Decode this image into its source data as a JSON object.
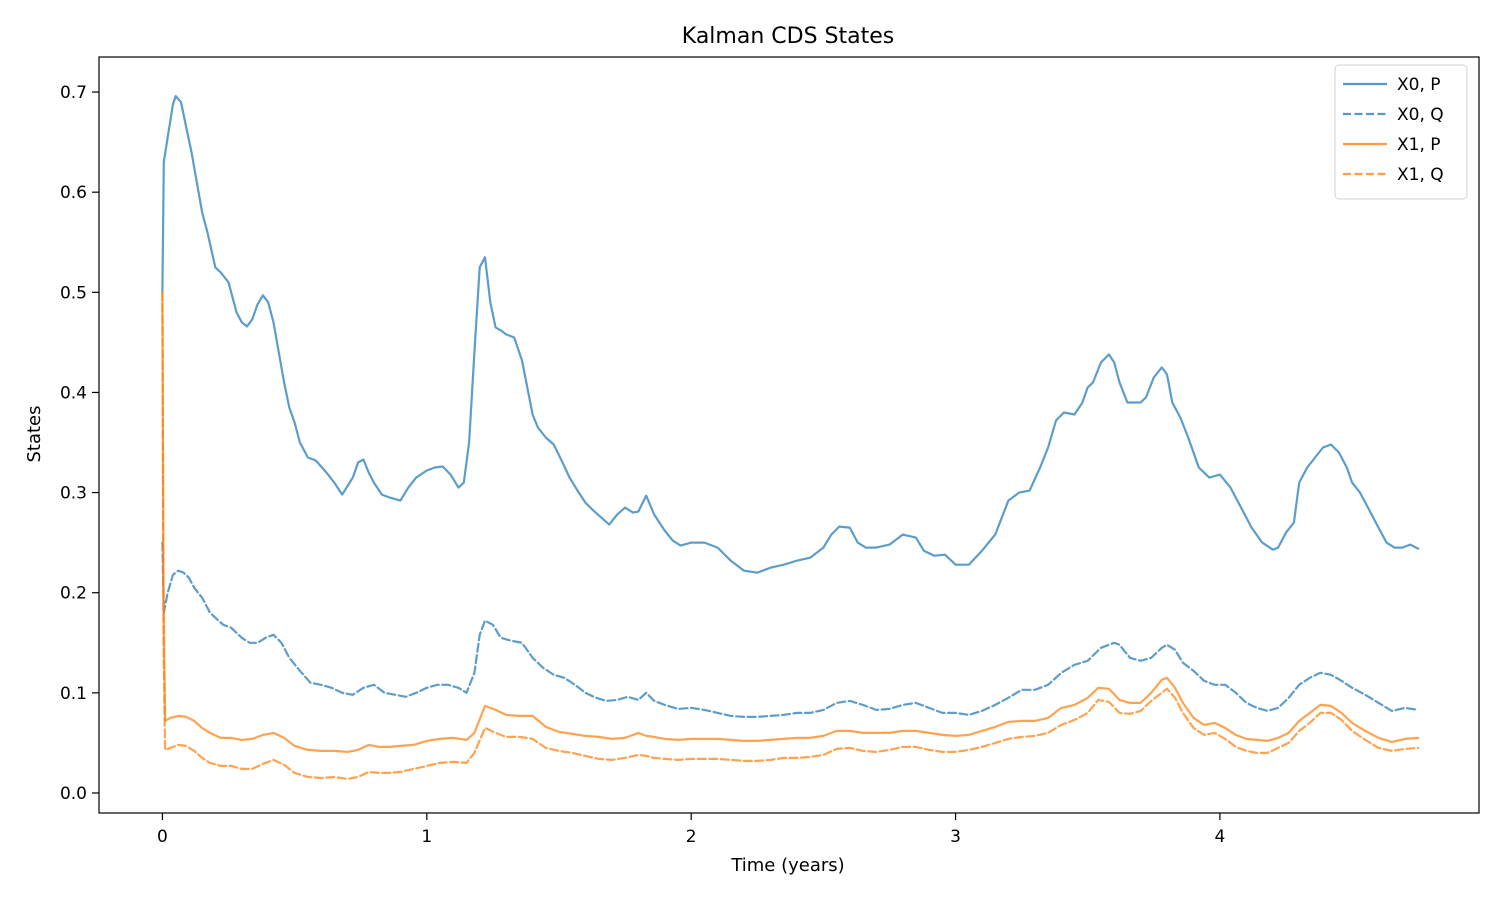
{
  "chart_data": {
    "type": "line",
    "title": "Kalman CDS States",
    "xlabel": "Time (years)",
    "ylabel": "States",
    "xlim": [
      -0.24,
      4.98
    ],
    "ylim": [
      -0.02,
      0.735
    ],
    "xticks": [
      0,
      1,
      2,
      3,
      4
    ],
    "xtick_labels": [
      "0",
      "1",
      "2",
      "3",
      "4"
    ],
    "yticks": [
      0.0,
      0.1,
      0.2,
      0.3,
      0.4,
      0.5,
      0.6,
      0.7
    ],
    "ytick_labels": [
      "0.0",
      "0.1",
      "0.2",
      "0.3",
      "0.4",
      "0.5",
      "0.6",
      "0.7"
    ],
    "grid": false,
    "legend_position": "top-right",
    "series": [
      {
        "name": "X0, P",
        "color": "#1f77b4",
        "dash": "solid",
        "x": [
          0,
          0.005,
          0.02,
          0.04,
          0.05,
          0.07,
          0.09,
          0.11,
          0.13,
          0.15,
          0.17,
          0.2,
          0.22,
          0.25,
          0.28,
          0.3,
          0.32,
          0.34,
          0.36,
          0.38,
          0.4,
          0.42,
          0.44,
          0.46,
          0.48,
          0.5,
          0.52,
          0.55,
          0.58,
          0.62,
          0.65,
          0.68,
          0.72,
          0.74,
          0.76,
          0.78,
          0.8,
          0.83,
          0.86,
          0.9,
          0.93,
          0.96,
          1.0,
          1.03,
          1.06,
          1.09,
          1.12,
          1.14,
          1.16,
          1.18,
          1.2,
          1.22,
          1.24,
          1.26,
          1.28,
          1.3,
          1.33,
          1.36,
          1.38,
          1.4,
          1.42,
          1.45,
          1.48,
          1.51,
          1.54,
          1.57,
          1.6,
          1.63,
          1.66,
          1.69,
          1.72,
          1.75,
          1.78,
          1.8,
          1.83,
          1.86,
          1.9,
          1.93,
          1.96,
          2.0,
          2.05,
          2.1,
          2.15,
          2.2,
          2.25,
          2.3,
          2.35,
          2.4,
          2.45,
          2.5,
          2.53,
          2.56,
          2.6,
          2.63,
          2.66,
          2.7,
          2.75,
          2.8,
          2.85,
          2.88,
          2.92,
          2.96,
          3.0,
          3.05,
          3.1,
          3.15,
          3.2,
          3.24,
          3.28,
          3.32,
          3.35,
          3.38,
          3.41,
          3.45,
          3.48,
          3.5,
          3.52,
          3.55,
          3.58,
          3.6,
          3.62,
          3.65,
          3.68,
          3.7,
          3.72,
          3.75,
          3.78,
          3.8,
          3.82,
          3.85,
          3.88,
          3.92,
          3.96,
          4.0,
          4.04,
          4.08,
          4.12,
          4.16,
          4.2,
          4.22,
          4.25,
          4.28,
          4.3,
          4.33,
          4.36,
          4.39,
          4.42,
          4.45,
          4.48,
          4.5,
          4.53,
          4.56,
          4.6,
          4.63,
          4.66,
          4.69,
          4.72,
          4.75
        ],
        "values": [
          0.5,
          0.63,
          0.655,
          0.688,
          0.696,
          0.69,
          0.665,
          0.64,
          0.61,
          0.58,
          0.56,
          0.525,
          0.52,
          0.51,
          0.48,
          0.47,
          0.466,
          0.473,
          0.488,
          0.497,
          0.49,
          0.47,
          0.44,
          0.41,
          0.385,
          0.37,
          0.35,
          0.335,
          0.332,
          0.32,
          0.31,
          0.298,
          0.315,
          0.33,
          0.333,
          0.32,
          0.31,
          0.298,
          0.295,
          0.292,
          0.305,
          0.315,
          0.322,
          0.325,
          0.326,
          0.318,
          0.305,
          0.31,
          0.35,
          0.44,
          0.525,
          0.535,
          0.49,
          0.465,
          0.462,
          0.458,
          0.455,
          0.432,
          0.405,
          0.378,
          0.365,
          0.355,
          0.348,
          0.332,
          0.315,
          0.302,
          0.29,
          0.282,
          0.275,
          0.268,
          0.278,
          0.285,
          0.28,
          0.281,
          0.297,
          0.278,
          0.262,
          0.252,
          0.247,
          0.25,
          0.25,
          0.245,
          0.232,
          0.222,
          0.22,
          0.225,
          0.228,
          0.232,
          0.235,
          0.245,
          0.258,
          0.266,
          0.265,
          0.25,
          0.245,
          0.245,
          0.248,
          0.258,
          0.255,
          0.242,
          0.237,
          0.238,
          0.228,
          0.228,
          0.242,
          0.258,
          0.292,
          0.3,
          0.302,
          0.325,
          0.345,
          0.372,
          0.38,
          0.378,
          0.39,
          0.405,
          0.41,
          0.43,
          0.438,
          0.43,
          0.41,
          0.39,
          0.39,
          0.39,
          0.395,
          0.415,
          0.425,
          0.418,
          0.39,
          0.375,
          0.355,
          0.325,
          0.315,
          0.318,
          0.305,
          0.285,
          0.265,
          0.25,
          0.243,
          0.245,
          0.26,
          0.27,
          0.31,
          0.325,
          0.335,
          0.345,
          0.348,
          0.34,
          0.325,
          0.31,
          0.3,
          0.285,
          0.265,
          0.25,
          0.245,
          0.245,
          0.248,
          0.244
        ]
      },
      {
        "name": "X0, Q",
        "color": "#1f77b4",
        "dash": "dashed",
        "x": [
          0,
          0.005,
          0.02,
          0.04,
          0.06,
          0.08,
          0.1,
          0.12,
          0.15,
          0.18,
          0.2,
          0.23,
          0.26,
          0.3,
          0.33,
          0.36,
          0.39,
          0.42,
          0.45,
          0.48,
          0.52,
          0.56,
          0.6,
          0.64,
          0.68,
          0.72,
          0.76,
          0.8,
          0.84,
          0.88,
          0.92,
          0.96,
          1.0,
          1.04,
          1.08,
          1.12,
          1.15,
          1.18,
          1.2,
          1.22,
          1.25,
          1.28,
          1.32,
          1.36,
          1.4,
          1.44,
          1.48,
          1.52,
          1.56,
          1.6,
          1.64,
          1.68,
          1.72,
          1.76,
          1.8,
          1.83,
          1.86,
          1.9,
          1.95,
          2.0,
          2.05,
          2.1,
          2.15,
          2.2,
          2.25,
          2.3,
          2.35,
          2.4,
          2.45,
          2.5,
          2.55,
          2.6,
          2.65,
          2.7,
          2.75,
          2.8,
          2.85,
          2.9,
          2.95,
          3.0,
          3.05,
          3.1,
          3.15,
          3.2,
          3.25,
          3.3,
          3.35,
          3.4,
          3.45,
          3.5,
          3.55,
          3.6,
          3.62,
          3.66,
          3.7,
          3.74,
          3.78,
          3.8,
          3.83,
          3.86,
          3.9,
          3.94,
          3.98,
          4.02,
          4.06,
          4.1,
          4.14,
          4.18,
          4.22,
          4.26,
          4.3,
          4.34,
          4.38,
          4.42,
          4.46,
          4.5,
          4.55,
          4.6,
          4.65,
          4.7,
          4.75
        ],
        "values": [
          0.25,
          0.18,
          0.2,
          0.218,
          0.222,
          0.22,
          0.215,
          0.205,
          0.195,
          0.18,
          0.175,
          0.168,
          0.165,
          0.155,
          0.15,
          0.15,
          0.155,
          0.158,
          0.15,
          0.135,
          0.122,
          0.11,
          0.108,
          0.105,
          0.1,
          0.098,
          0.105,
          0.108,
          0.1,
          0.098,
          0.096,
          0.1,
          0.105,
          0.108,
          0.108,
          0.105,
          0.1,
          0.12,
          0.158,
          0.172,
          0.168,
          0.155,
          0.152,
          0.15,
          0.135,
          0.125,
          0.118,
          0.115,
          0.108,
          0.1,
          0.095,
          0.092,
          0.093,
          0.096,
          0.093,
          0.1,
          0.092,
          0.088,
          0.084,
          0.085,
          0.083,
          0.08,
          0.077,
          0.076,
          0.076,
          0.077,
          0.078,
          0.08,
          0.08,
          0.083,
          0.09,
          0.092,
          0.088,
          0.083,
          0.084,
          0.088,
          0.09,
          0.085,
          0.08,
          0.08,
          0.078,
          0.082,
          0.088,
          0.095,
          0.103,
          0.103,
          0.108,
          0.12,
          0.128,
          0.132,
          0.145,
          0.15,
          0.148,
          0.135,
          0.132,
          0.135,
          0.145,
          0.148,
          0.143,
          0.13,
          0.122,
          0.112,
          0.108,
          0.108,
          0.1,
          0.09,
          0.085,
          0.082,
          0.085,
          0.095,
          0.108,
          0.115,
          0.12,
          0.118,
          0.112,
          0.105,
          0.098,
          0.09,
          0.082,
          0.085,
          0.083
        ]
      },
      {
        "name": "X1, P",
        "color": "#ff7f0e",
        "dash": "solid",
        "x": [
          0,
          0.004,
          0.01,
          0.03,
          0.06,
          0.09,
          0.12,
          0.15,
          0.18,
          0.22,
          0.26,
          0.3,
          0.34,
          0.38,
          0.42,
          0.46,
          0.5,
          0.55,
          0.6,
          0.65,
          0.7,
          0.74,
          0.78,
          0.82,
          0.86,
          0.9,
          0.95,
          1.0,
          1.05,
          1.1,
          1.15,
          1.18,
          1.22,
          1.26,
          1.3,
          1.35,
          1.4,
          1.45,
          1.5,
          1.55,
          1.6,
          1.65,
          1.7,
          1.75,
          1.8,
          1.83,
          1.86,
          1.9,
          1.95,
          2.0,
          2.05,
          2.1,
          2.15,
          2.2,
          2.25,
          2.3,
          2.35,
          2.4,
          2.45,
          2.5,
          2.55,
          2.6,
          2.65,
          2.7,
          2.75,
          2.8,
          2.85,
          2.9,
          2.95,
          3.0,
          3.05,
          3.1,
          3.15,
          3.2,
          3.25,
          3.3,
          3.35,
          3.4,
          3.45,
          3.5,
          3.54,
          3.58,
          3.62,
          3.66,
          3.7,
          3.74,
          3.78,
          3.8,
          3.83,
          3.86,
          3.9,
          3.94,
          3.98,
          4.02,
          4.06,
          4.1,
          4.14,
          4.18,
          4.22,
          4.26,
          4.3,
          4.34,
          4.38,
          4.42,
          4.46,
          4.5,
          4.55,
          4.6,
          4.65,
          4.7,
          4.75
        ],
        "values": [
          0.5,
          0.2,
          0.072,
          0.075,
          0.077,
          0.076,
          0.072,
          0.065,
          0.06,
          0.055,
          0.055,
          0.053,
          0.054,
          0.058,
          0.06,
          0.055,
          0.047,
          0.043,
          0.042,
          0.042,
          0.041,
          0.043,
          0.048,
          0.046,
          0.046,
          0.047,
          0.048,
          0.052,
          0.054,
          0.055,
          0.053,
          0.06,
          0.087,
          0.083,
          0.078,
          0.077,
          0.077,
          0.066,
          0.061,
          0.059,
          0.057,
          0.056,
          0.054,
          0.055,
          0.06,
          0.057,
          0.056,
          0.054,
          0.053,
          0.054,
          0.054,
          0.054,
          0.053,
          0.052,
          0.052,
          0.053,
          0.054,
          0.055,
          0.055,
          0.057,
          0.062,
          0.062,
          0.06,
          0.06,
          0.06,
          0.062,
          0.062,
          0.06,
          0.058,
          0.057,
          0.058,
          0.062,
          0.066,
          0.071,
          0.072,
          0.072,
          0.075,
          0.085,
          0.088,
          0.095,
          0.105,
          0.104,
          0.093,
          0.09,
          0.09,
          0.1,
          0.113,
          0.115,
          0.105,
          0.09,
          0.075,
          0.068,
          0.07,
          0.065,
          0.058,
          0.054,
          0.053,
          0.052,
          0.055,
          0.06,
          0.072,
          0.08,
          0.088,
          0.087,
          0.08,
          0.07,
          0.062,
          0.055,
          0.051,
          0.054,
          0.055
        ]
      },
      {
        "name": "X1, Q",
        "color": "#ff7f0e",
        "dash": "dashed",
        "x": [
          0,
          0.004,
          0.01,
          0.03,
          0.06,
          0.09,
          0.12,
          0.15,
          0.18,
          0.22,
          0.26,
          0.3,
          0.34,
          0.38,
          0.42,
          0.46,
          0.5,
          0.55,
          0.6,
          0.65,
          0.7,
          0.74,
          0.78,
          0.82,
          0.86,
          0.9,
          0.95,
          1.0,
          1.05,
          1.1,
          1.15,
          1.18,
          1.22,
          1.26,
          1.3,
          1.35,
          1.4,
          1.45,
          1.5,
          1.55,
          1.6,
          1.65,
          1.7,
          1.75,
          1.8,
          1.83,
          1.86,
          1.9,
          1.95,
          2.0,
          2.05,
          2.1,
          2.15,
          2.2,
          2.25,
          2.3,
          2.35,
          2.4,
          2.45,
          2.5,
          2.55,
          2.6,
          2.65,
          2.7,
          2.75,
          2.8,
          2.85,
          2.9,
          2.95,
          3.0,
          3.05,
          3.1,
          3.15,
          3.2,
          3.25,
          3.3,
          3.35,
          3.4,
          3.45,
          3.5,
          3.54,
          3.58,
          3.62,
          3.66,
          3.7,
          3.74,
          3.78,
          3.8,
          3.83,
          3.86,
          3.9,
          3.94,
          3.98,
          4.02,
          4.06,
          4.1,
          4.14,
          4.18,
          4.22,
          4.26,
          4.3,
          4.34,
          4.38,
          4.42,
          4.46,
          4.5,
          4.55,
          4.6,
          4.65,
          4.7,
          4.75
        ],
        "values": [
          0.5,
          0.15,
          0.043,
          0.045,
          0.048,
          0.047,
          0.042,
          0.035,
          0.03,
          0.027,
          0.027,
          0.024,
          0.024,
          0.029,
          0.033,
          0.028,
          0.02,
          0.016,
          0.015,
          0.016,
          0.014,
          0.016,
          0.021,
          0.02,
          0.02,
          0.021,
          0.024,
          0.027,
          0.03,
          0.031,
          0.03,
          0.04,
          0.065,
          0.06,
          0.056,
          0.056,
          0.054,
          0.045,
          0.042,
          0.04,
          0.037,
          0.034,
          0.033,
          0.035,
          0.038,
          0.037,
          0.035,
          0.034,
          0.033,
          0.034,
          0.034,
          0.034,
          0.033,
          0.032,
          0.032,
          0.033,
          0.035,
          0.035,
          0.036,
          0.038,
          0.044,
          0.045,
          0.042,
          0.041,
          0.043,
          0.046,
          0.046,
          0.043,
          0.041,
          0.041,
          0.043,
          0.046,
          0.05,
          0.054,
          0.056,
          0.057,
          0.06,
          0.068,
          0.073,
          0.08,
          0.093,
          0.091,
          0.08,
          0.079,
          0.082,
          0.092,
          0.1,
          0.104,
          0.095,
          0.08,
          0.065,
          0.058,
          0.06,
          0.054,
          0.046,
          0.042,
          0.04,
          0.04,
          0.045,
          0.05,
          0.062,
          0.07,
          0.08,
          0.08,
          0.073,
          0.062,
          0.053,
          0.045,
          0.042,
          0.044,
          0.045
        ]
      }
    ]
  }
}
